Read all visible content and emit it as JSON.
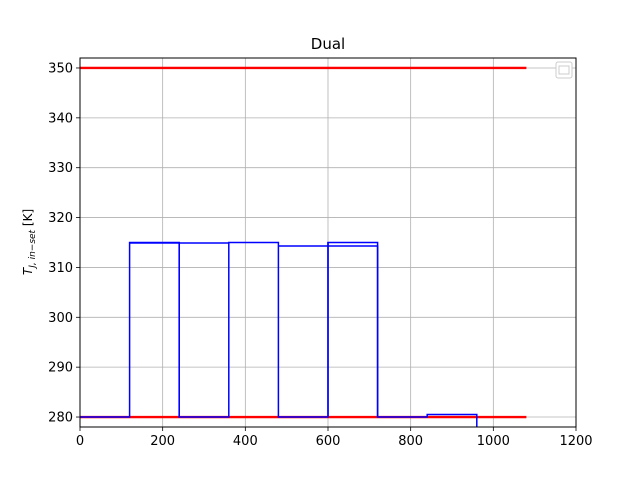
{
  "chart_data": {
    "type": "line",
    "title": "Dual",
    "xlabel": "",
    "ylabel": "T_{J,in−set} [K]",
    "ylabel_main": "T",
    "ylabel_sub": "J, in−set",
    "ylabel_unit": " [K]",
    "xlim": [
      0,
      1200
    ],
    "ylim": [
      278,
      352
    ],
    "x_ticks": [
      0,
      200,
      400,
      600,
      800,
      1000,
      1200
    ],
    "y_ticks": [
      280,
      290,
      300,
      310,
      320,
      330,
      340,
      350
    ],
    "grid": true,
    "legend": {
      "placement": "top-right",
      "entries": []
    },
    "series": [
      {
        "color": "#ff0000",
        "x": [
          0,
          1080
        ],
        "y": [
          350,
          350
        ]
      },
      {
        "color": "#ff0000",
        "x": [
          0,
          1080
        ],
        "y": [
          280,
          280
        ]
      },
      {
        "color": "#0000ff",
        "x": [
          0,
          120,
          120,
          240,
          240,
          360,
          360,
          480,
          480,
          600,
          600,
          720,
          720,
          840,
          840,
          960,
          960
        ],
        "y": [
          280,
          280,
          315,
          315,
          280,
          280,
          315,
          315,
          280,
          280,
          315,
          315,
          280,
          280,
          280.5,
          280.5,
          278
        ]
      },
      {
        "color": "#0000ff",
        "x": [
          120,
          240,
          360
        ],
        "y": [
          314.9,
          314.9,
          314.9
        ]
      },
      {
        "color": "#0000ff",
        "x": [
          480,
          600,
          720,
          720
        ],
        "y": [
          314.3,
          314.3,
          314.3,
          280
        ]
      },
      {
        "color": "#0000ff",
        "x": [
          240,
          240
        ],
        "y": [
          314.9,
          280
        ]
      },
      {
        "color": "#0000ff",
        "x": [
          600,
          600
        ],
        "y": [
          315.1,
          280
        ]
      }
    ]
  }
}
